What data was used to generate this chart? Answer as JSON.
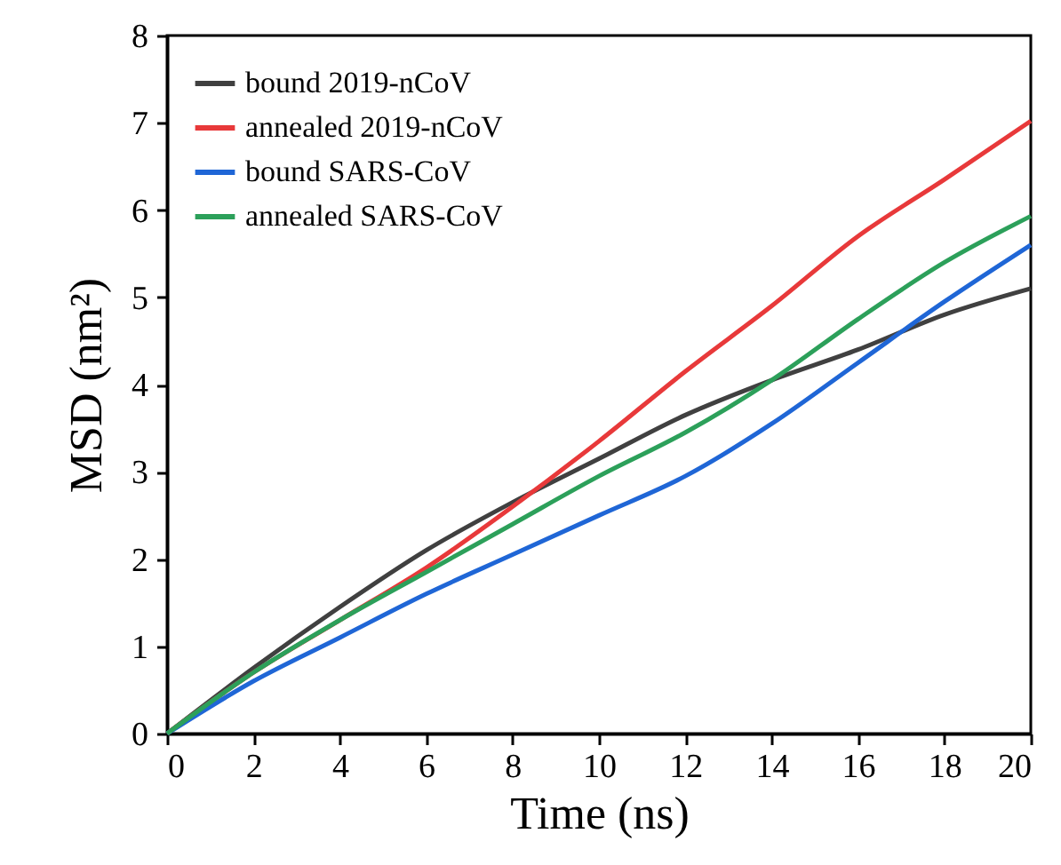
{
  "chart_data": {
    "type": "line",
    "xlabel": "Time (ns)",
    "ylabel": "MSD (nm²)",
    "x": [
      0,
      2,
      4,
      6,
      8,
      10,
      12,
      14,
      16,
      18,
      20
    ],
    "series": [
      {
        "name": "bound 2019-nCoV",
        "color": "#404040",
        "values": [
          0,
          0.75,
          1.45,
          2.1,
          2.65,
          3.15,
          3.65,
          4.05,
          4.4,
          4.8,
          5.1
        ]
      },
      {
        "name": "annealed 2019-nCoV",
        "color": "#e8393a",
        "values": [
          0,
          0.7,
          1.3,
          1.9,
          2.6,
          3.35,
          4.15,
          4.9,
          5.7,
          6.35,
          7.02
        ]
      },
      {
        "name": "bound SARS-CoV",
        "color": "#1f66d6",
        "values": [
          0,
          0.6,
          1.1,
          1.6,
          2.05,
          2.5,
          2.95,
          3.55,
          4.25,
          4.95,
          5.6
        ]
      },
      {
        "name": "annealed SARS-CoV",
        "color": "#2ca05a",
        "values": [
          0,
          0.7,
          1.3,
          1.85,
          2.4,
          2.95,
          3.45,
          4.05,
          4.75,
          5.4,
          5.93
        ]
      }
    ],
    "xlim": [
      0,
      20
    ],
    "xticks": [
      0,
      2,
      4,
      6,
      8,
      10,
      12,
      14,
      16,
      18,
      20
    ],
    "ylim": [
      0,
      8
    ],
    "yticks": [
      0,
      1,
      2,
      3,
      4,
      5,
      6,
      7,
      8
    ],
    "grid": false,
    "legend": "top left",
    "marker": "none",
    "line_style": "solid"
  }
}
